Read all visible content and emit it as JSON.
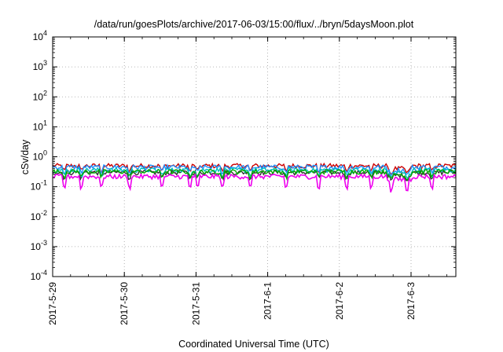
{
  "chart_data": {
    "type": "line",
    "title": "/data/run/goesPlots/archive/2017-06-03/15:00/flux/../bryn/5daysMoon.plot",
    "xlabel": "Coordinated Universal Time (UTC)",
    "ylabel": "cSv/day",
    "yscale": "log",
    "ylim": [
      0.0001,
      10000
    ],
    "xlim": [
      "2017-05-29T00:00",
      "2017-06-03T15:00"
    ],
    "y_ticks": [
      {
        "value": 0.0001,
        "base": "10",
        "exp": "-4"
      },
      {
        "value": 0.001,
        "base": "10",
        "exp": "-3"
      },
      {
        "value": 0.01,
        "base": "10",
        "exp": "-2"
      },
      {
        "value": 0.1,
        "base": "10",
        "exp": "-1"
      },
      {
        "value": 1,
        "base": "10",
        "exp": "0"
      },
      {
        "value": 10,
        "base": "10",
        "exp": "1"
      },
      {
        "value": 100,
        "base": "10",
        "exp": "2"
      },
      {
        "value": 1000,
        "base": "10",
        "exp": "3"
      },
      {
        "value": 10000,
        "base": "10",
        "exp": "4"
      }
    ],
    "x_ticks": [
      {
        "value": "2017-05-29T00:00",
        "label": "2017-5-29"
      },
      {
        "value": "2017-05-30T00:00",
        "label": "2017-5-30"
      },
      {
        "value": "2017-05-31T00:00",
        "label": "2017-5-31"
      },
      {
        "value": "2017-06-01T00:00",
        "label": "2017-6-1"
      },
      {
        "value": "2017-06-02T00:00",
        "label": "2017-6-2"
      },
      {
        "value": "2017-06-03T00:00",
        "label": "2017-6-3"
      }
    ],
    "grid": true,
    "series": [
      {
        "color": "#cc0000",
        "level": 0.5
      },
      {
        "color": "#333333",
        "level": 0.3
      },
      {
        "color": "#1e90ff",
        "level": 0.45
      },
      {
        "color": "#00bfbf",
        "level": 0.36
      },
      {
        "color": "#00aa00",
        "level": 0.32
      },
      {
        "color": "#ee00ee",
        "level": 0.22
      }
    ]
  }
}
